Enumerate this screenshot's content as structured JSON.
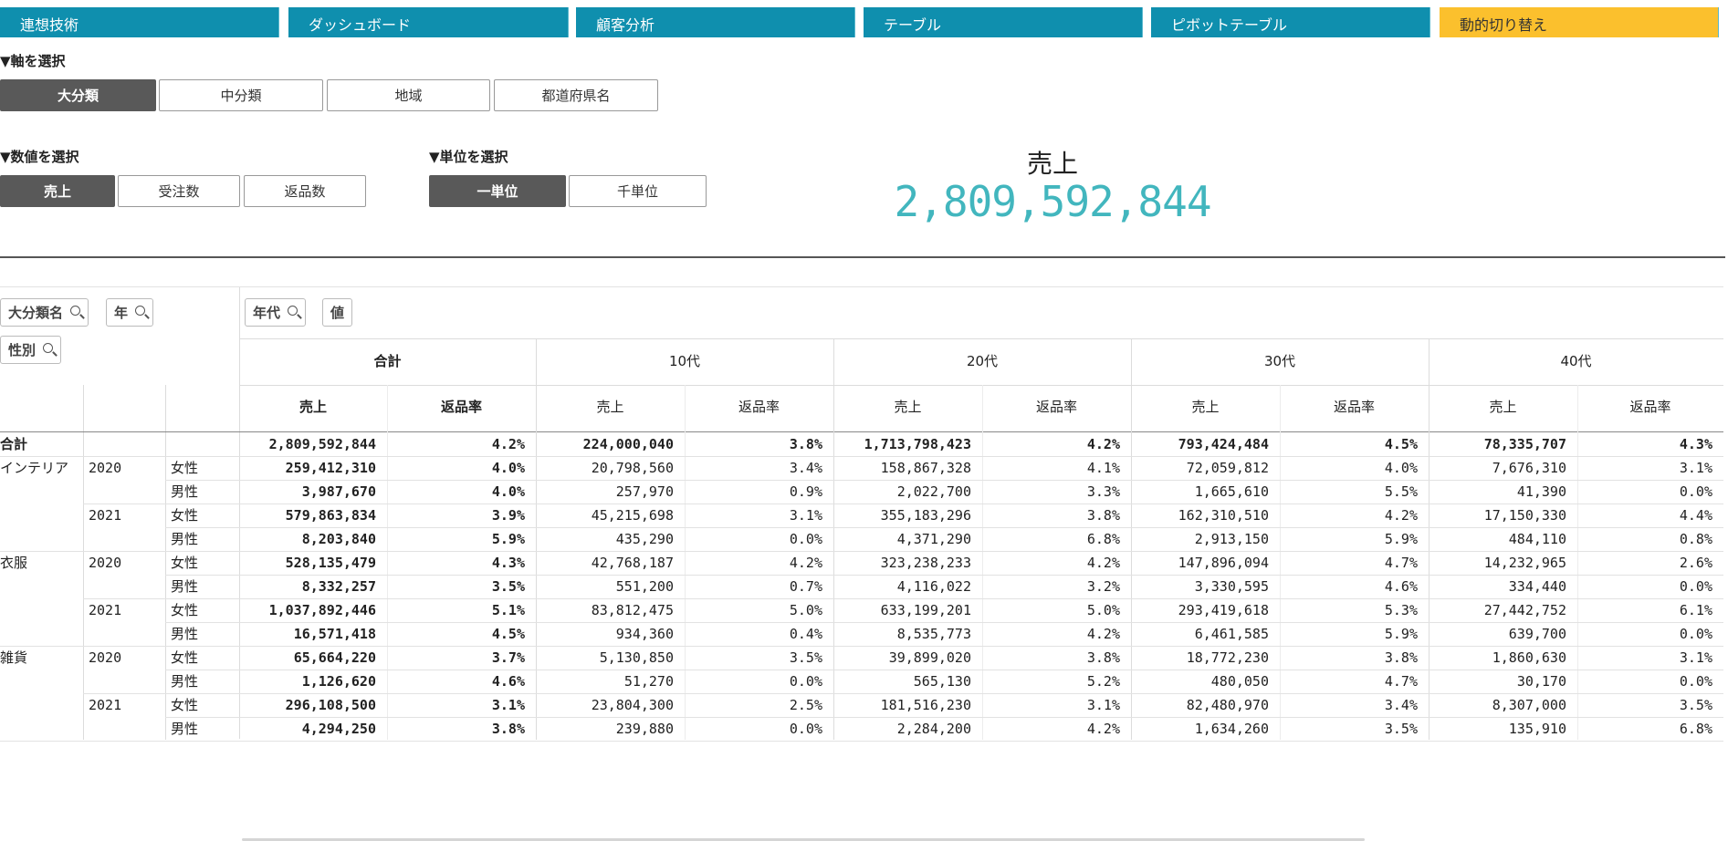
{
  "tabs": [
    {
      "label": "連想技術",
      "active": false
    },
    {
      "label": "ダッシュボード",
      "active": false
    },
    {
      "label": "顧客分析",
      "active": false
    },
    {
      "label": "テーブル",
      "active": false
    },
    {
      "label": "ピボットテーブル",
      "active": false
    },
    {
      "label": "動的切り替え",
      "active": true
    }
  ],
  "axis": {
    "label": "▼軸を選択",
    "options": [
      "大分類",
      "中分類",
      "地域",
      "都道府県名"
    ],
    "selected": "大分類"
  },
  "measure": {
    "label": "▼数値を選択",
    "options": [
      "売上",
      "受注数",
      "返品数"
    ],
    "selected": "売上"
  },
  "unit": {
    "label": "▼単位を選択",
    "options": [
      "一単位",
      "千単位"
    ],
    "selected": "一単位"
  },
  "kpi": {
    "title": "売上",
    "value": "2,809,592,844"
  },
  "pivot": {
    "row_dims": [
      "大分類名",
      "年",
      "性別"
    ],
    "col_dims": [
      "年代",
      "値"
    ],
    "col_groups": [
      "合計",
      "10代",
      "20代",
      "30代",
      "40代"
    ],
    "measures": [
      "売上",
      "返品率"
    ],
    "total_label": "合計",
    "total_row": [
      "2,809,592,844",
      "4.2%",
      "224,000,040",
      "3.8%",
      "1,713,798,423",
      "4.2%",
      "793,424,484",
      "4.5%",
      "78,335,707",
      "4.3%"
    ],
    "rows": [
      {
        "cat": "インテリア",
        "year": "2020",
        "gender": "女性",
        "vals": [
          "259,412,310",
          "4.0%",
          "20,798,560",
          "3.4%",
          "158,867,328",
          "4.1%",
          "72,059,812",
          "4.0%",
          "7,676,310",
          "3.1%"
        ]
      },
      {
        "cat": "",
        "year": "",
        "gender": "男性",
        "vals": [
          "3,987,670",
          "4.0%",
          "257,970",
          "0.9%",
          "2,022,700",
          "3.3%",
          "1,665,610",
          "5.5%",
          "41,390",
          "0.0%"
        ]
      },
      {
        "cat": "",
        "year": "2021",
        "gender": "女性",
        "vals": [
          "579,863,834",
          "3.9%",
          "45,215,698",
          "3.1%",
          "355,183,296",
          "3.8%",
          "162,310,510",
          "4.2%",
          "17,150,330",
          "4.4%"
        ]
      },
      {
        "cat": "",
        "year": "",
        "gender": "男性",
        "vals": [
          "8,203,840",
          "5.9%",
          "435,290",
          "0.0%",
          "4,371,290",
          "6.8%",
          "2,913,150",
          "5.9%",
          "484,110",
          "0.8%"
        ]
      },
      {
        "cat": "衣服",
        "year": "2020",
        "gender": "女性",
        "vals": [
          "528,135,479",
          "4.3%",
          "42,768,187",
          "4.2%",
          "323,238,233",
          "4.2%",
          "147,896,094",
          "4.7%",
          "14,232,965",
          "2.6%"
        ]
      },
      {
        "cat": "",
        "year": "",
        "gender": "男性",
        "vals": [
          "8,332,257",
          "3.5%",
          "551,200",
          "0.7%",
          "4,116,022",
          "3.2%",
          "3,330,595",
          "4.6%",
          "334,440",
          "0.0%"
        ]
      },
      {
        "cat": "",
        "year": "2021",
        "gender": "女性",
        "vals": [
          "1,037,892,446",
          "5.1%",
          "83,812,475",
          "5.0%",
          "633,199,201",
          "5.0%",
          "293,419,618",
          "5.3%",
          "27,442,752",
          "6.1%"
        ]
      },
      {
        "cat": "",
        "year": "",
        "gender": "男性",
        "vals": [
          "16,571,418",
          "4.5%",
          "934,360",
          "0.4%",
          "8,535,773",
          "4.2%",
          "6,461,585",
          "5.9%",
          "639,700",
          "0.0%"
        ]
      },
      {
        "cat": "雑貨",
        "year": "2020",
        "gender": "女性",
        "vals": [
          "65,664,220",
          "3.7%",
          "5,130,850",
          "3.5%",
          "39,899,020",
          "3.8%",
          "18,772,230",
          "3.8%",
          "1,860,630",
          "3.1%"
        ]
      },
      {
        "cat": "",
        "year": "",
        "gender": "男性",
        "vals": [
          "1,126,620",
          "4.6%",
          "51,270",
          "0.0%",
          "565,130",
          "5.2%",
          "480,050",
          "4.7%",
          "30,170",
          "0.0%"
        ]
      },
      {
        "cat": "",
        "year": "2021",
        "gender": "女性",
        "vals": [
          "296,108,500",
          "3.1%",
          "23,804,300",
          "2.5%",
          "181,516,230",
          "3.1%",
          "82,480,970",
          "3.4%",
          "8,307,000",
          "3.5%"
        ]
      },
      {
        "cat": "",
        "year": "",
        "gender": "男性",
        "vals": [
          "4,294,250",
          "3.8%",
          "239,880",
          "0.0%",
          "2,284,200",
          "4.2%",
          "1,634,260",
          "3.5%",
          "135,910",
          "6.8%"
        ]
      }
    ]
  }
}
